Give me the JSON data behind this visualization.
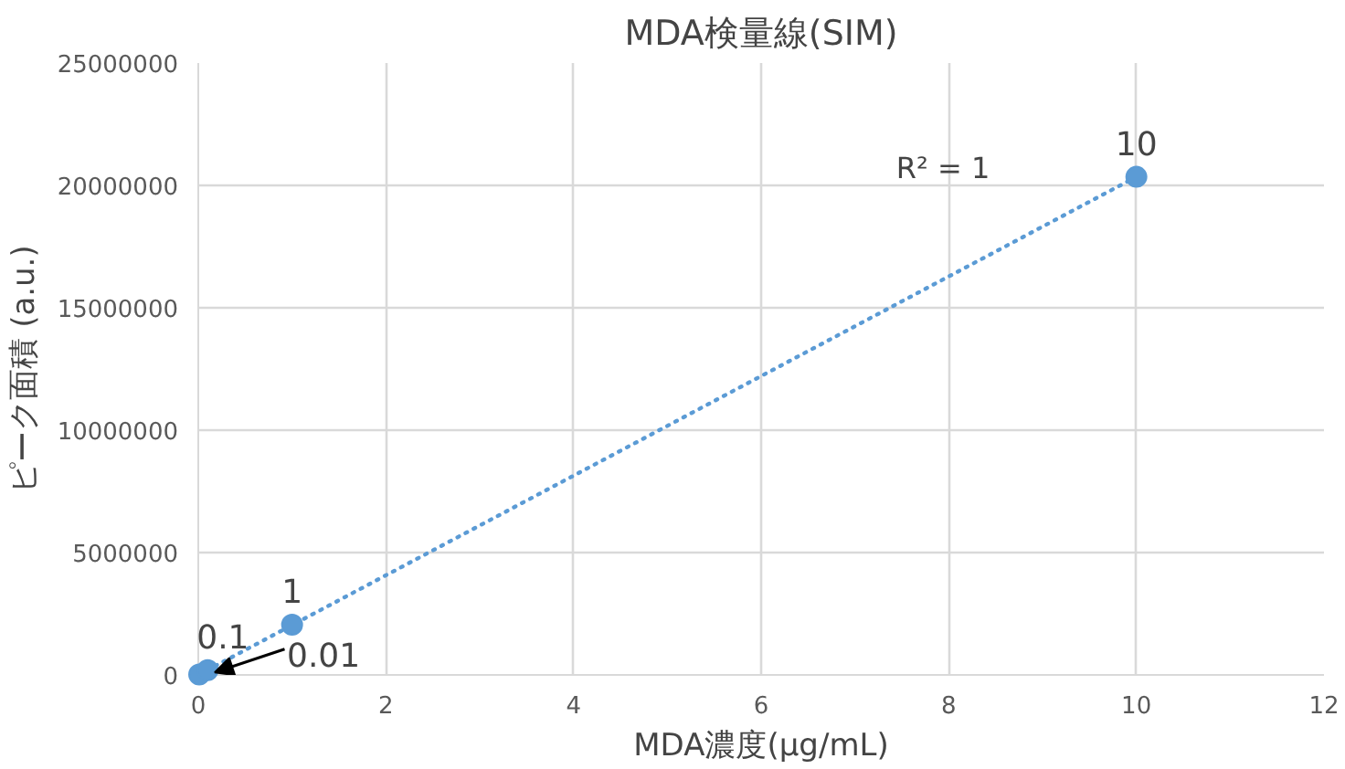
{
  "chart_data": {
    "type": "scatter",
    "title": "MDA検量線(SIM)",
    "xlabel": "MDA濃度(μg/mL)",
    "ylabel": "ピーク面積 (a.u.)",
    "x": [
      0.01,
      0.1,
      1,
      10
    ],
    "series": [
      {
        "color": "#5b9bd5",
        "values": [
          20000,
          200000,
          2050000,
          20350000
        ],
        "marker": "circle"
      },
      {
        "type": "line",
        "color": "#5b9bd5",
        "x": [
          0.01,
          10
        ],
        "values": [
          20000,
          20350000
        ],
        "line_style": "dotted",
        "marker": "none"
      }
    ],
    "xlim": [
      0,
      12
    ],
    "xticks": [
      0,
      2,
      4,
      6,
      8,
      10,
      12
    ],
    "ylim": [
      0,
      25000000
    ],
    "yticks": [
      0,
      5000000,
      10000000,
      15000000,
      20000000,
      25000000
    ],
    "grid": true,
    "annotations": [
      {
        "text": "0.01",
        "x": 0.01,
        "y": 20000
      },
      {
        "text": "0.1",
        "x": 0.1,
        "y": 200000
      },
      {
        "text": "1",
        "x": 1,
        "y": 2050000
      },
      {
        "text": "10",
        "x": 10,
        "y": 20350000
      },
      "R² = 1"
    ]
  }
}
